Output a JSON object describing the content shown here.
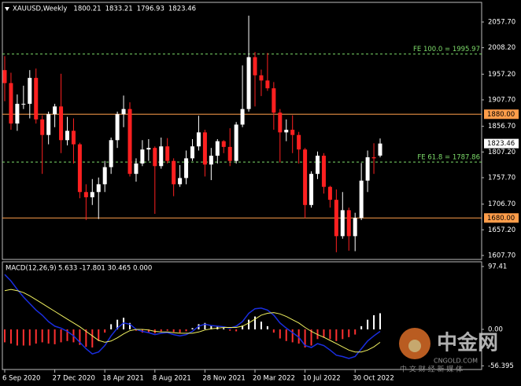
{
  "chart_data": {
    "type": "candlestick",
    "title": "XAUUSD,Weekly",
    "categories": [
      "6 Sep 2020",
      null,
      null,
      null,
      null,
      null,
      null,
      null,
      "27 Dec 2020",
      null,
      null,
      null,
      null,
      null,
      null,
      null,
      "18 Apr 2021",
      null,
      null,
      null,
      null,
      null,
      null,
      null,
      "8 Aug 2021",
      null,
      null,
      null,
      null,
      null,
      null,
      null,
      "28 Nov 2021",
      null,
      null,
      null,
      null,
      null,
      null,
      null,
      "20 Mar 2022",
      null,
      null,
      null,
      null,
      null,
      null,
      null,
      "10 Jul 2022",
      null,
      null,
      null,
      null,
      null,
      null,
      null,
      "30 Oct 2022",
      null,
      null,
      null,
      null
    ],
    "open": [
      1965,
      1940,
      1862,
      1900,
      1900,
      1950,
      1870,
      1840,
      1880,
      1895,
      1830,
      1848,
      1822,
      1730,
      1720,
      1730,
      1745,
      1778,
      1830,
      1880,
      1890,
      1765,
      1785,
      1812,
      1815,
      1780,
      1818,
      1790,
      1745,
      1757,
      1795,
      1818,
      1845,
      1783,
      1800,
      1828,
      1817,
      1790,
      1860,
      1890,
      1990,
      1955,
      1945,
      1930,
      1883,
      1845,
      1850,
      1840,
      1812,
      1705,
      1765,
      1800,
      1740,
      1715,
      1645,
      1695,
      1645,
      1680,
      1752,
      1797,
      1800.21
    ],
    "high": [
      1992,
      1960,
      1918,
      1935,
      1965,
      1968,
      1878,
      1885,
      1900,
      1958,
      1875,
      1872,
      1825,
      1745,
      1755,
      1758,
      1790,
      1835,
      1885,
      1916,
      1903,
      1795,
      1830,
      1832,
      1818,
      1835,
      1834,
      1795,
      1782,
      1810,
      1832,
      1877,
      1850,
      1815,
      1832,
      1830,
      1853,
      1865,
      1974,
      2070,
      2000,
      1966,
      1998,
      1942,
      1890,
      1870,
      1878,
      1846,
      1815,
      1770,
      1808,
      1805,
      1742,
      1735,
      1730,
      1700,
      1690,
      1786,
      1810,
      1824,
      1833.21
    ],
    "low": [
      1905,
      1850,
      1848,
      1890,
      1872,
      1862,
      1765,
      1822,
      1855,
      1805,
      1820,
      1785,
      1718,
      1676,
      1705,
      1678,
      1730,
      1765,
      1815,
      1855,
      1760,
      1750,
      1780,
      1790,
      1688,
      1775,
      1785,
      1722,
      1740,
      1745,
      1790,
      1810,
      1760,
      1753,
      1785,
      1805,
      1780,
      1785,
      1855,
      1885,
      1895,
      1915,
      1925,
      1850,
      1787,
      1828,
      1805,
      1785,
      1680,
      1700,
      1755,
      1727,
      1700,
      1614,
      1640,
      1617,
      1616,
      1676,
      1730,
      1765,
      1796.93
    ],
    "close": [
      1940,
      1862,
      1900,
      1900,
      1950,
      1870,
      1840,
      1880,
      1895,
      1830,
      1848,
      1822,
      1730,
      1720,
      1730,
      1745,
      1778,
      1830,
      1880,
      1890,
      1765,
      1785,
      1812,
      1815,
      1780,
      1818,
      1790,
      1745,
      1757,
      1795,
      1818,
      1845,
      1783,
      1800,
      1828,
      1817,
      1790,
      1860,
      1890,
      1990,
      1955,
      1945,
      1930,
      1883,
      1845,
      1850,
      1840,
      1812,
      1705,
      1765,
      1800,
      1740,
      1715,
      1645,
      1695,
      1645,
      1680,
      1752,
      1797,
      1795,
      1823.46
    ],
    "up_color": "#ffffff",
    "down_color": "#ff2020",
    "ylim": [
      1600.1,
      2095.6
    ],
    "yticks": [
      {
        "value": 2057.7,
        "label": "2057.70"
      },
      {
        "value": 2008.2,
        "label": "2008.20"
      },
      {
        "value": 1957.2,
        "label": "1957.20"
      },
      {
        "value": 1907.7,
        "label": "1907.70"
      },
      {
        "value": 1856.7,
        "label": "1856.70"
      },
      {
        "value": 1807.2,
        "label": "1807.20"
      },
      {
        "value": 1757.7,
        "label": "1757.70"
      },
      {
        "value": 1706.7,
        "label": "1706.70"
      },
      {
        "value": 1657.2,
        "label": "1657.20"
      },
      {
        "value": 1607.7,
        "label": "1607.70"
      }
    ],
    "levels": [
      {
        "value": 1880,
        "label": "1880.00",
        "color": "#ff9d4a"
      },
      {
        "value": 1680,
        "label": "1680.00",
        "color": "#ff9d4a"
      }
    ],
    "fib_levels": [
      {
        "value": 1995.97,
        "label": "FE 100.0 = 1995.97",
        "color": "#7ddc6a"
      },
      {
        "value": 1787.86,
        "label": "FE 61.8 = 1787.86",
        "color": "#7ddc6a"
      }
    ],
    "macd": {
      "title": "MACD(12,26,9)",
      "readout": "5.633 -17.801 30.465 0.000",
      "ylim": [
        -62.1,
        104.7
      ],
      "yticks": [
        97.41,
        {
          "value": 0,
          "label": "0.00"
        },
        -56.395
      ],
      "histogram": [
        -20,
        -22,
        -25,
        -25,
        -25,
        -22,
        -20,
        -22,
        -23,
        -20,
        -18,
        -20,
        -24,
        -27,
        -28,
        -18,
        -5,
        8,
        15,
        18,
        10,
        -2,
        -5,
        -5,
        -6,
        -3,
        -2,
        -4,
        -5,
        -3,
        2,
        8,
        10,
        6,
        4,
        2,
        -2,
        -3,
        6,
        15,
        20,
        12,
        5,
        -5,
        -14,
        -18,
        -20,
        -22,
        -28,
        -25,
        -15,
        -13,
        -15,
        -18,
        -15,
        -12,
        -8,
        5,
        15,
        22,
        25
      ],
      "main": [
        85,
        75,
        62,
        50,
        40,
        30,
        22,
        12,
        5,
        2,
        -3,
        -10,
        -20,
        -30,
        -38,
        -35,
        -25,
        -10,
        2,
        10,
        8,
        0,
        -3,
        -5,
        -8,
        -6,
        -5,
        -8,
        -10,
        -8,
        -3,
        5,
        8,
        6,
        5,
        4,
        2,
        5,
        12,
        25,
        32,
        33,
        30,
        22,
        10,
        2,
        -5,
        -12,
        -25,
        -28,
        -22,
        -25,
        -32,
        -40,
        -42,
        -45,
        -42,
        -30,
        -18,
        -10,
        -3
      ],
      "signal": [
        60,
        62,
        60,
        57,
        52,
        46,
        40,
        34,
        28,
        22,
        16,
        10,
        4,
        -3,
        -10,
        -17,
        -20,
        -18,
        -13,
        -7,
        -2,
        0,
        0,
        -1,
        -3,
        -4,
        -4,
        -5,
        -6,
        -6,
        -6,
        -4,
        -1,
        1,
        2,
        3,
        3,
        3,
        5,
        10,
        16,
        22,
        25,
        26,
        24,
        20,
        15,
        10,
        3,
        -3,
        -8,
        -12,
        -17,
        -22,
        -27,
        -32,
        -35,
        -35,
        -32,
        -27,
        -20
      ],
      "up_color": "#ffffff",
      "down_color": "#ff3030",
      "main_color": "#1a2ee0",
      "signal_color": "#f0f060"
    },
    "watermark": {
      "brand": "中金网",
      "site": "CNGOLD.COM",
      "slogan": "中 文 财 经 新 媒 体"
    }
  }
}
